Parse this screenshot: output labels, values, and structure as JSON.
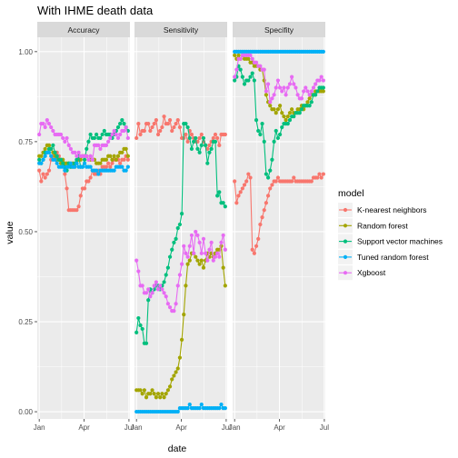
{
  "chart_data": {
    "type": "line",
    "title": "With IHME death data",
    "xlabel": "date",
    "ylabel": "value",
    "ylim": [
      -0.02,
      1.04
    ],
    "y_ticks": [
      "0.00",
      "0.25",
      "0.50",
      "0.75",
      "1.00"
    ],
    "x_ticks": [
      "Jan",
      "Apr",
      "Jul"
    ],
    "x_tick_days": [
      0,
      91,
      182
    ],
    "xlim_days": [
      -4,
      184
    ],
    "grid": true,
    "legend": {
      "title": "model",
      "position": "right",
      "items": [
        "K-nearest neighbors",
        "Random forest",
        "Support vector machines",
        "Tuned random forest",
        "Xgboost"
      ]
    },
    "colors": [
      "#F8766D",
      "#A3A500",
      "#00BF7D",
      "#00B0F6",
      "#E76BF3"
    ],
    "panels": [
      {
        "name": "Accuracy",
        "days": [
          0,
          4,
          8,
          12,
          16,
          20,
          24,
          28,
          32,
          36,
          40,
          44,
          48,
          52,
          56,
          60,
          64,
          68,
          72,
          76,
          80,
          84,
          88,
          92,
          96,
          100,
          104,
          108,
          112,
          116,
          120,
          124,
          128,
          132,
          136,
          140,
          144,
          148,
          152,
          156,
          160,
          164,
          168,
          172,
          176,
          180
        ],
        "series": [
          {
            "name": "K-nearest neighbors",
            "values": [
              0.67,
              0.64,
              0.66,
              0.65,
              0.66,
              0.67,
              0.7,
              0.71,
              0.72,
              0.72,
              0.71,
              0.7,
              0.69,
              0.66,
              0.62,
              0.56,
              0.56,
              0.56,
              0.56,
              0.56,
              0.57,
              0.6,
              0.62,
              0.62,
              0.64,
              0.64,
              0.65,
              0.67,
              0.66,
              0.66,
              0.67,
              0.66,
              0.68,
              0.68,
              0.68,
              0.69,
              0.68,
              0.69,
              0.7,
              0.7,
              0.7,
              0.69,
              0.7,
              0.7,
              0.71,
              0.7
            ]
          },
          {
            "name": "Random forest",
            "values": [
              0.71,
              0.71,
              0.72,
              0.73,
              0.74,
              0.74,
              0.73,
              0.72,
              0.71,
              0.7,
              0.7,
              0.69,
              0.7,
              0.69,
              0.69,
              0.69,
              0.68,
              0.69,
              0.68,
              0.69,
              0.7,
              0.7,
              0.71,
              0.71,
              0.71,
              0.7,
              0.7,
              0.7,
              0.7,
              0.69,
              0.69,
              0.69,
              0.7,
              0.7,
              0.7,
              0.71,
              0.71,
              0.7,
              0.71,
              0.7,
              0.71,
              0.72,
              0.72,
              0.73,
              0.73,
              0.71
            ]
          },
          {
            "name": "Support vector machines",
            "values": [
              0.7,
              0.69,
              0.7,
              0.72,
              0.72,
              0.73,
              0.73,
              0.74,
              0.72,
              0.71,
              0.7,
              0.7,
              0.69,
              0.68,
              0.67,
              0.69,
              0.68,
              0.68,
              0.69,
              0.7,
              0.71,
              0.68,
              0.68,
              0.7,
              0.73,
              0.75,
              0.77,
              0.76,
              0.76,
              0.77,
              0.76,
              0.76,
              0.77,
              0.78,
              0.77,
              0.77,
              0.77,
              0.76,
              0.77,
              0.78,
              0.79,
              0.8,
              0.81,
              0.8,
              0.79,
              0.78
            ]
          },
          {
            "name": "Tuned random forest",
            "values": [
              0.69,
              0.69,
              0.7,
              0.71,
              0.72,
              0.72,
              0.71,
              0.7,
              0.7,
              0.69,
              0.68,
              0.68,
              0.68,
              0.67,
              0.68,
              0.68,
              0.69,
              0.68,
              0.68,
              0.69,
              0.68,
              0.68,
              0.68,
              0.69,
              0.68,
              0.68,
              0.68,
              0.67,
              0.67,
              0.67,
              0.66,
              0.67,
              0.67,
              0.67,
              0.67,
              0.67,
              0.67,
              0.67,
              0.67,
              0.68,
              0.68,
              0.68,
              0.68,
              0.67,
              0.67,
              0.68
            ]
          },
          {
            "name": "Xgboost",
            "values": [
              0.77,
              0.8,
              0.8,
              0.79,
              0.81,
              0.8,
              0.79,
              0.78,
              0.77,
              0.77,
              0.77,
              0.77,
              0.76,
              0.75,
              0.76,
              0.74,
              0.73,
              0.72,
              0.72,
              0.71,
              0.72,
              0.71,
              0.71,
              0.71,
              0.71,
              0.7,
              0.71,
              0.7,
              0.74,
              0.74,
              0.74,
              0.73,
              0.74,
              0.74,
              0.74,
              0.75,
              0.76,
              0.77,
              0.78,
              0.77,
              0.76,
              0.77,
              0.78,
              0.78,
              0.79,
              0.76
            ]
          }
        ]
      },
      {
        "name": "Sensitivity",
        "days": [
          0,
          4,
          8,
          12,
          16,
          20,
          24,
          28,
          32,
          36,
          40,
          44,
          48,
          52,
          56,
          60,
          64,
          68,
          72,
          76,
          80,
          84,
          88,
          92,
          96,
          100,
          104,
          108,
          112,
          116,
          120,
          124,
          128,
          132,
          136,
          140,
          144,
          148,
          152,
          156,
          160,
          164,
          168,
          172,
          176,
          180
        ],
        "series": [
          {
            "name": "K-nearest neighbors",
            "values": [
              0.76,
              0.8,
              0.77,
              0.78,
              0.78,
              0.8,
              0.8,
              0.78,
              0.79,
              0.8,
              0.81,
              0.77,
              0.78,
              0.79,
              0.82,
              0.8,
              0.8,
              0.81,
              0.78,
              0.79,
              0.8,
              0.81,
              0.79,
              0.76,
              0.76,
              0.77,
              0.75,
              0.78,
              0.77,
              0.76,
              0.75,
              0.75,
              0.76,
              0.77,
              0.75,
              0.74,
              0.73,
              0.74,
              0.75,
              0.76,
              0.77,
              0.76,
              0.74,
              0.77,
              0.77,
              0.77
            ]
          },
          {
            "name": "Random forest",
            "values": [
              0.06,
              0.06,
              0.06,
              0.05,
              0.06,
              0.04,
              0.05,
              0.05,
              0.06,
              0.05,
              0.04,
              0.05,
              0.04,
              0.05,
              0.04,
              0.05,
              0.06,
              0.07,
              0.09,
              0.1,
              0.11,
              0.12,
              0.15,
              0.2,
              0.27,
              0.35,
              0.41,
              0.42,
              0.44,
              0.44,
              0.43,
              0.42,
              0.41,
              0.42,
              0.4,
              0.42,
              0.44,
              0.43,
              0.44,
              0.43,
              0.44,
              0.45,
              0.45,
              0.46,
              0.4,
              0.35
            ]
          },
          {
            "name": "Support vector machines",
            "values": [
              0.22,
              0.26,
              0.24,
              0.23,
              0.19,
              0.19,
              0.31,
              0.34,
              0.33,
              0.34,
              0.35,
              0.35,
              0.34,
              0.35,
              0.36,
              0.38,
              0.4,
              0.43,
              0.45,
              0.47,
              0.48,
              0.51,
              0.52,
              0.55,
              0.8,
              0.8,
              0.79,
              0.76,
              0.73,
              0.75,
              0.76,
              0.73,
              0.72,
              0.74,
              0.76,
              0.74,
              0.69,
              0.72,
              0.73,
              0.75,
              0.75,
              0.6,
              0.61,
              0.58,
              0.58,
              0.57
            ]
          },
          {
            "name": "Tuned random forest",
            "values": [
              0.0,
              0.0,
              0.0,
              0.0,
              0.0,
              0.0,
              0.0,
              0.0,
              0.0,
              0.0,
              0.0,
              0.0,
              0.0,
              0.0,
              0.0,
              0.0,
              0.0,
              0.0,
              0.0,
              0.0,
              0.0,
              0.0,
              0.01,
              0.01,
              0.01,
              0.01,
              0.01,
              0.02,
              0.01,
              0.01,
              0.01,
              0.01,
              0.01,
              0.02,
              0.01,
              0.01,
              0.01,
              0.01,
              0.01,
              0.01,
              0.01,
              0.01,
              0.01,
              0.02,
              0.01,
              0.01
            ]
          },
          {
            "name": "Xgboost",
            "values": [
              0.42,
              0.39,
              0.35,
              0.35,
              0.33,
              0.33,
              0.34,
              0.32,
              0.33,
              0.35,
              0.36,
              0.34,
              0.35,
              0.34,
              0.33,
              0.32,
              0.3,
              0.29,
              0.28,
              0.28,
              0.3,
              0.35,
              0.38,
              0.41,
              0.46,
              0.44,
              0.43,
              0.46,
              0.49,
              0.44,
              0.5,
              0.49,
              0.47,
              0.44,
              0.48,
              0.44,
              0.42,
              0.45,
              0.47,
              0.42,
              0.43,
              0.44,
              0.43,
              0.47,
              0.49,
              0.45
            ]
          }
        ]
      },
      {
        "name": "Specifity",
        "days": [
          0,
          4,
          8,
          12,
          16,
          20,
          24,
          28,
          32,
          36,
          40,
          44,
          48,
          52,
          56,
          60,
          64,
          68,
          72,
          76,
          80,
          84,
          88,
          92,
          96,
          100,
          104,
          108,
          112,
          116,
          120,
          124,
          128,
          132,
          136,
          140,
          144,
          148,
          152,
          156,
          160,
          164,
          168,
          172,
          176,
          180
        ],
        "series": [
          {
            "name": "K-nearest neighbors",
            "values": [
              0.64,
              0.58,
              0.6,
              0.61,
              0.62,
              0.63,
              0.64,
              0.66,
              0.65,
              0.45,
              0.44,
              0.46,
              0.48,
              0.52,
              0.54,
              0.56,
              0.58,
              0.6,
              0.62,
              0.63,
              0.64,
              0.64,
              0.65,
              0.64,
              0.64,
              0.64,
              0.64,
              0.64,
              0.64,
              0.64,
              0.65,
              0.64,
              0.64,
              0.64,
              0.64,
              0.64,
              0.64,
              0.64,
              0.64,
              0.64,
              0.65,
              0.65,
              0.65,
              0.66,
              0.65,
              0.66
            ]
          },
          {
            "name": "Random forest",
            "values": [
              0.99,
              0.98,
              0.99,
              0.98,
              0.99,
              0.98,
              0.98,
              0.98,
              0.97,
              0.97,
              0.96,
              0.96,
              0.96,
              0.95,
              0.95,
              0.92,
              0.88,
              0.86,
              0.85,
              0.84,
              0.84,
              0.83,
              0.84,
              0.85,
              0.83,
              0.82,
              0.81,
              0.82,
              0.83,
              0.84,
              0.83,
              0.83,
              0.84,
              0.84,
              0.85,
              0.84,
              0.85,
              0.86,
              0.87,
              0.88,
              0.88,
              0.89,
              0.89,
              0.89,
              0.89,
              0.89
            ]
          },
          {
            "name": "Support vector machines",
            "values": [
              0.92,
              0.93,
              0.96,
              0.95,
              0.93,
              0.91,
              0.92,
              0.92,
              0.93,
              0.94,
              0.92,
              0.81,
              0.78,
              0.77,
              0.8,
              0.75,
              0.66,
              0.65,
              0.67,
              0.7,
              0.75,
              0.78,
              0.76,
              0.77,
              0.79,
              0.8,
              0.8,
              0.8,
              0.81,
              0.82,
              0.82,
              0.83,
              0.83,
              0.83,
              0.84,
              0.85,
              0.85,
              0.85,
              0.85,
              0.86,
              0.88,
              0.88,
              0.89,
              0.9,
              0.9,
              0.9
            ]
          },
          {
            "name": "Tuned random forest",
            "values": [
              1.0,
              1.0,
              1.0,
              1.0,
              1.0,
              1.0,
              1.0,
              1.0,
              1.0,
              1.0,
              1.0,
              1.0,
              1.0,
              1.0,
              1.0,
              1.0,
              1.0,
              1.0,
              1.0,
              1.0,
              1.0,
              1.0,
              1.0,
              1.0,
              1.0,
              1.0,
              1.0,
              1.0,
              1.0,
              1.0,
              1.0,
              1.0,
              1.0,
              1.0,
              1.0,
              1.0,
              1.0,
              1.0,
              1.0,
              1.0,
              1.0,
              1.0,
              1.0,
              1.0,
              1.0,
              1.0
            ]
          },
          {
            "name": "Xgboost",
            "values": [
              0.93,
              0.95,
              0.98,
              0.98,
              0.99,
              0.99,
              0.99,
              0.99,
              0.99,
              0.98,
              0.97,
              0.97,
              0.96,
              0.96,
              0.95,
              0.95,
              0.89,
              0.91,
              0.86,
              0.87,
              0.88,
              0.9,
              0.92,
              0.9,
              0.89,
              0.9,
              0.88,
              0.9,
              0.91,
              0.93,
              0.91,
              0.9,
              0.88,
              0.87,
              0.87,
              0.89,
              0.9,
              0.89,
              0.88,
              0.89,
              0.9,
              0.91,
              0.92,
              0.92,
              0.93,
              0.92
            ]
          }
        ]
      }
    ]
  }
}
